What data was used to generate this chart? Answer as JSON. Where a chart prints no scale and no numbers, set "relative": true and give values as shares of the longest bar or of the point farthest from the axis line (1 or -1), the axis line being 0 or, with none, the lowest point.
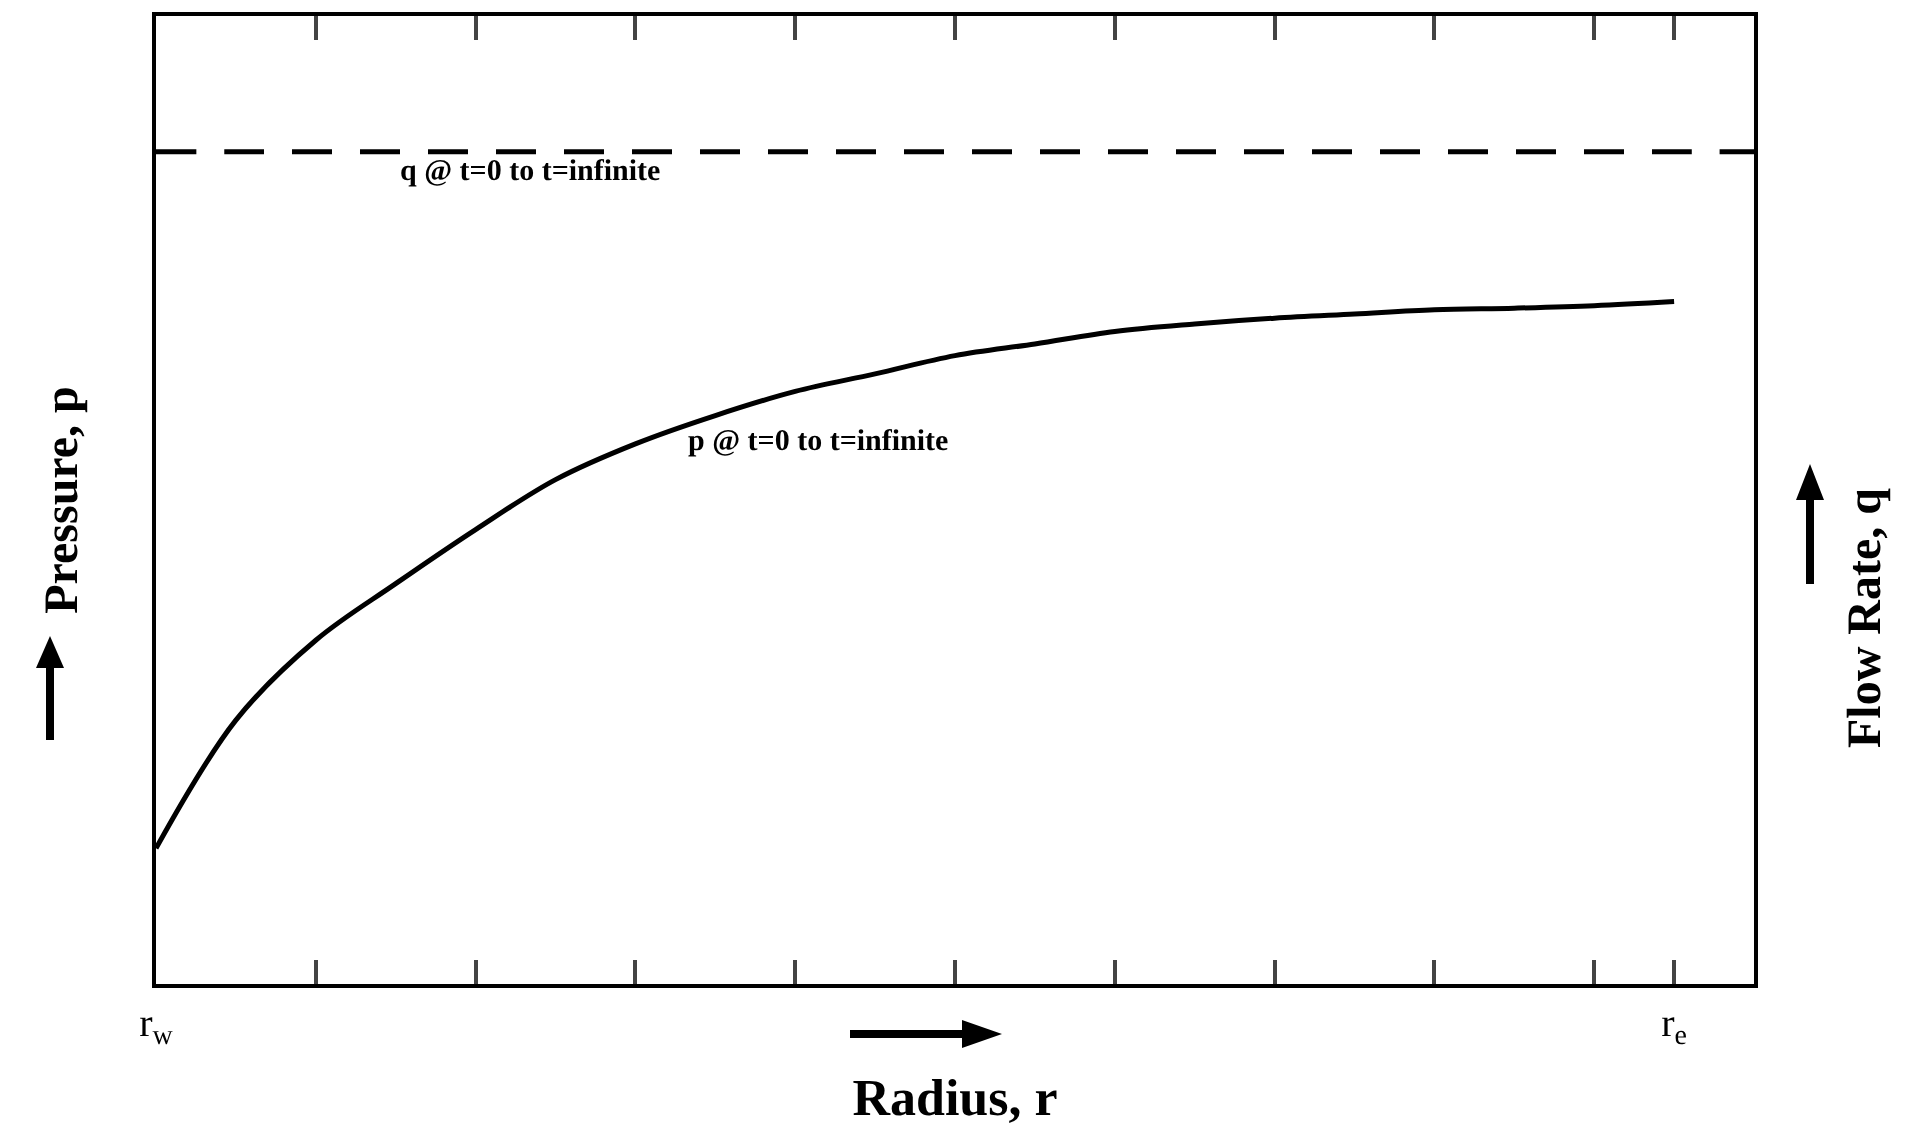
{
  "chart_data": {
    "type": "line",
    "relative": true,
    "xlabel": "Radius, r",
    "ylabel": "Pressure, p",
    "y2label": "Flow Rate, q",
    "categories": [
      "r$_{w}$",
      null,
      null,
      null,
      null,
      null,
      null,
      null,
      null,
      null,
      null,
      null,
      null,
      null,
      null,
      null,
      null,
      null,
      null,
      "r$_{e}$",
      null
    ],
    "series": [
      {
        "color": "#000000",
        "line_style": "solid",
        "values": [
          0.163,
          0.317,
          0.413,
          0.481,
          0.546,
          0.606,
          0.649,
          0.683,
          0.712,
          0.733,
          0.755,
          0.769,
          0.784,
          0.793,
          0.8,
          0.805,
          0.81,
          0.812,
          0.815,
          0.82,
          null
        ]
      },
      {
        "color": "#000000",
        "line_style": "dashed",
        "values": [
          1,
          1,
          1,
          1,
          1,
          1,
          1,
          1,
          1,
          1,
          1,
          1,
          1,
          1,
          1,
          1,
          1,
          1,
          1,
          1,
          1
        ]
      }
    ],
    "annotations": [
      "q @ t=0 to t=infinite",
      "p @ t=0 to t=infinite"
    ],
    "legend": false,
    "grid": false,
    "marker": "none"
  }
}
